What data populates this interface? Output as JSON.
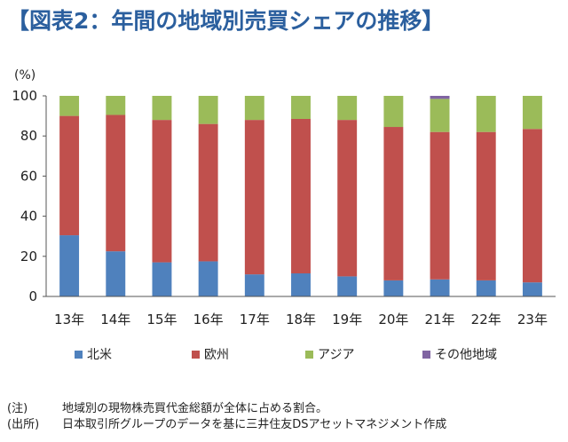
{
  "title": "【図表2：年間の地域別売買シェアの推移】",
  "chart_data": {
    "type": "bar",
    "stacked": true,
    "categories": [
      "13年",
      "14年",
      "15年",
      "16年",
      "17年",
      "18年",
      "19年",
      "20年",
      "21年",
      "22年",
      "23年"
    ],
    "series": [
      {
        "name": "北米",
        "color": "#4f81bd",
        "values": [
          30.5,
          22.5,
          17,
          17.5,
          11,
          11.5,
          10,
          8,
          8.5,
          8,
          7
        ]
      },
      {
        "name": "欧州",
        "color": "#c0504d",
        "values": [
          59.5,
          68,
          71,
          68.5,
          77,
          77,
          78,
          76.5,
          73.5,
          74,
          76.5
        ]
      },
      {
        "name": "アジア",
        "color": "#9bbb59",
        "values": [
          10,
          9.5,
          12,
          14,
          12,
          11.5,
          12,
          15.5,
          16.5,
          18,
          16.5
        ]
      },
      {
        "name": "その他地域",
        "color": "#8064a2",
        "values": [
          0,
          0,
          0,
          0,
          0,
          0,
          0,
          0,
          1.5,
          0,
          0
        ]
      }
    ],
    "ylabel": "(%)",
    "ylim": [
      0,
      100
    ],
    "yticks": [
      0,
      20,
      40,
      60,
      80,
      100
    ],
    "grid": false,
    "legend": "bottom"
  },
  "notes": [
    {
      "tag": "(注)",
      "text": "地域別の現物株売買代金総額が全体に占める割合。"
    },
    {
      "tag": "(出所)",
      "text": "日本取引所グループのデータを基に三井住友DSアセットマネジメント作成"
    }
  ]
}
